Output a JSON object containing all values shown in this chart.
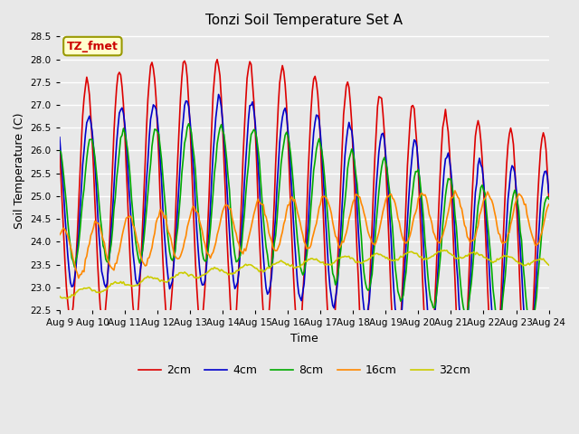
{
  "title": "Tonzi Soil Temperature Set A",
  "xlabel": "Time",
  "ylabel": "Soil Temperature (C)",
  "ylim": [
    22.5,
    28.6
  ],
  "annotation_text": "TZ_fmet",
  "annotation_box_color": "#ffffcc",
  "annotation_border_color": "#999900",
  "annotation_text_color": "#cc0000",
  "legend_labels": [
    "2cm",
    "4cm",
    "8cm",
    "16cm",
    "32cm"
  ],
  "line_colors": [
    "#dd0000",
    "#0000cc",
    "#00aa00",
    "#ff8800",
    "#cccc00"
  ],
  "xtick_labels": [
    "Aug 9",
    "Aug 10",
    "Aug 11",
    "Aug 12",
    "Aug 13",
    "Aug 14",
    "Aug 15",
    "Aug 16",
    "Aug 17",
    "Aug 18",
    "Aug 19",
    "Aug 20",
    "Aug 21",
    "Aug 22",
    "Aug 23",
    "Aug 24"
  ],
  "ytick_vals": [
    22.5,
    23.0,
    23.5,
    24.0,
    24.5,
    25.0,
    25.5,
    26.0,
    26.5,
    27.0,
    27.5,
    28.0,
    28.5
  ],
  "bg_color": "#e8e8e8",
  "grid_color": "#ffffff"
}
